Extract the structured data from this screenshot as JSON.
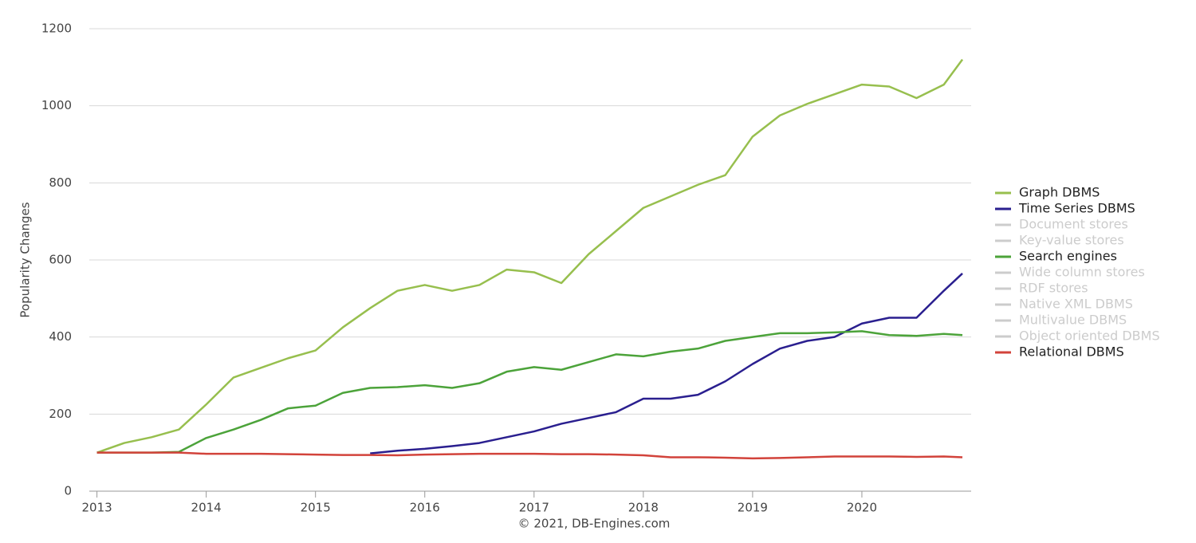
{
  "chart_data": {
    "type": "line",
    "ylabel": "Popularity Changes",
    "credit": "© 2021, DB-Engines.com",
    "x": [
      2013,
      2013.25,
      2013.5,
      2013.75,
      2014,
      2014.25,
      2014.5,
      2014.75,
      2015,
      2015.25,
      2015.5,
      2015.75,
      2016,
      2016.25,
      2016.5,
      2016.75,
      2017,
      2017.25,
      2017.5,
      2017.75,
      2018,
      2018.25,
      2018.5,
      2018.75,
      2019,
      2019.25,
      2019.5,
      2019.75,
      2020,
      2020.25,
      2020.5,
      2020.75,
      2020.92
    ],
    "xlim": [
      2012.93,
      2021
    ],
    "xticks": [
      2013,
      2014,
      2015,
      2016,
      2017,
      2018,
      2019,
      2020
    ],
    "ylim": [
      0,
      1200
    ],
    "yticks": [
      0,
      200,
      400,
      600,
      800,
      1000,
      1200
    ],
    "grid": true,
    "legend": "right",
    "series": [
      {
        "name": "Graph DBMS",
        "color": "#97bf4e",
        "values": [
          100,
          125,
          140,
          160,
          225,
          295,
          320,
          345,
          365,
          425,
          475,
          520,
          535,
          520,
          535,
          575,
          568,
          540,
          615,
          675,
          735,
          765,
          795,
          820,
          920,
          975,
          1005,
          1030,
          1055,
          1050,
          1020,
          1055,
          1120
        ]
      },
      {
        "name": "Time Series DBMS",
        "color": "#2a1f8f",
        "values": [
          null,
          null,
          null,
          null,
          null,
          null,
          null,
          null,
          null,
          null,
          98,
          105,
          110,
          117,
          125,
          140,
          155,
          175,
          190,
          205,
          240,
          240,
          250,
          285,
          330,
          370,
          390,
          400,
          435,
          450,
          450,
          520,
          565
        ]
      },
      {
        "name": "Document stores",
        "color": "#cccccc",
        "visible": false
      },
      {
        "name": "Key-value stores",
        "color": "#cccccc",
        "visible": false
      },
      {
        "name": "Search engines",
        "color": "#4ca33a",
        "values": [
          100,
          100,
          100,
          102,
          138,
          160,
          185,
          215,
          222,
          255,
          268,
          270,
          275,
          268,
          280,
          310,
          322,
          315,
          335,
          355,
          350,
          362,
          370,
          390,
          400,
          410,
          410,
          412,
          415,
          405,
          403,
          408,
          405
        ]
      },
      {
        "name": "Wide column stores",
        "color": "#cccccc",
        "visible": false
      },
      {
        "name": "RDF stores",
        "color": "#cccccc",
        "visible": false
      },
      {
        "name": "Native XML DBMS",
        "color": "#cccccc",
        "visible": false
      },
      {
        "name": "Multivalue DBMS",
        "color": "#cccccc",
        "visible": false
      },
      {
        "name": "Object oriented DBMS",
        "color": "#cccccc",
        "visible": false
      },
      {
        "name": "Relational DBMS",
        "color": "#d2433b",
        "values": [
          100,
          100,
          100,
          100,
          97,
          97,
          97,
          96,
          95,
          94,
          94,
          93,
          95,
          96,
          97,
          97,
          97,
          96,
          96,
          95,
          93,
          88,
          88,
          87,
          85,
          86,
          88,
          90,
          90,
          90,
          89,
          90,
          88
        ]
      }
    ]
  }
}
